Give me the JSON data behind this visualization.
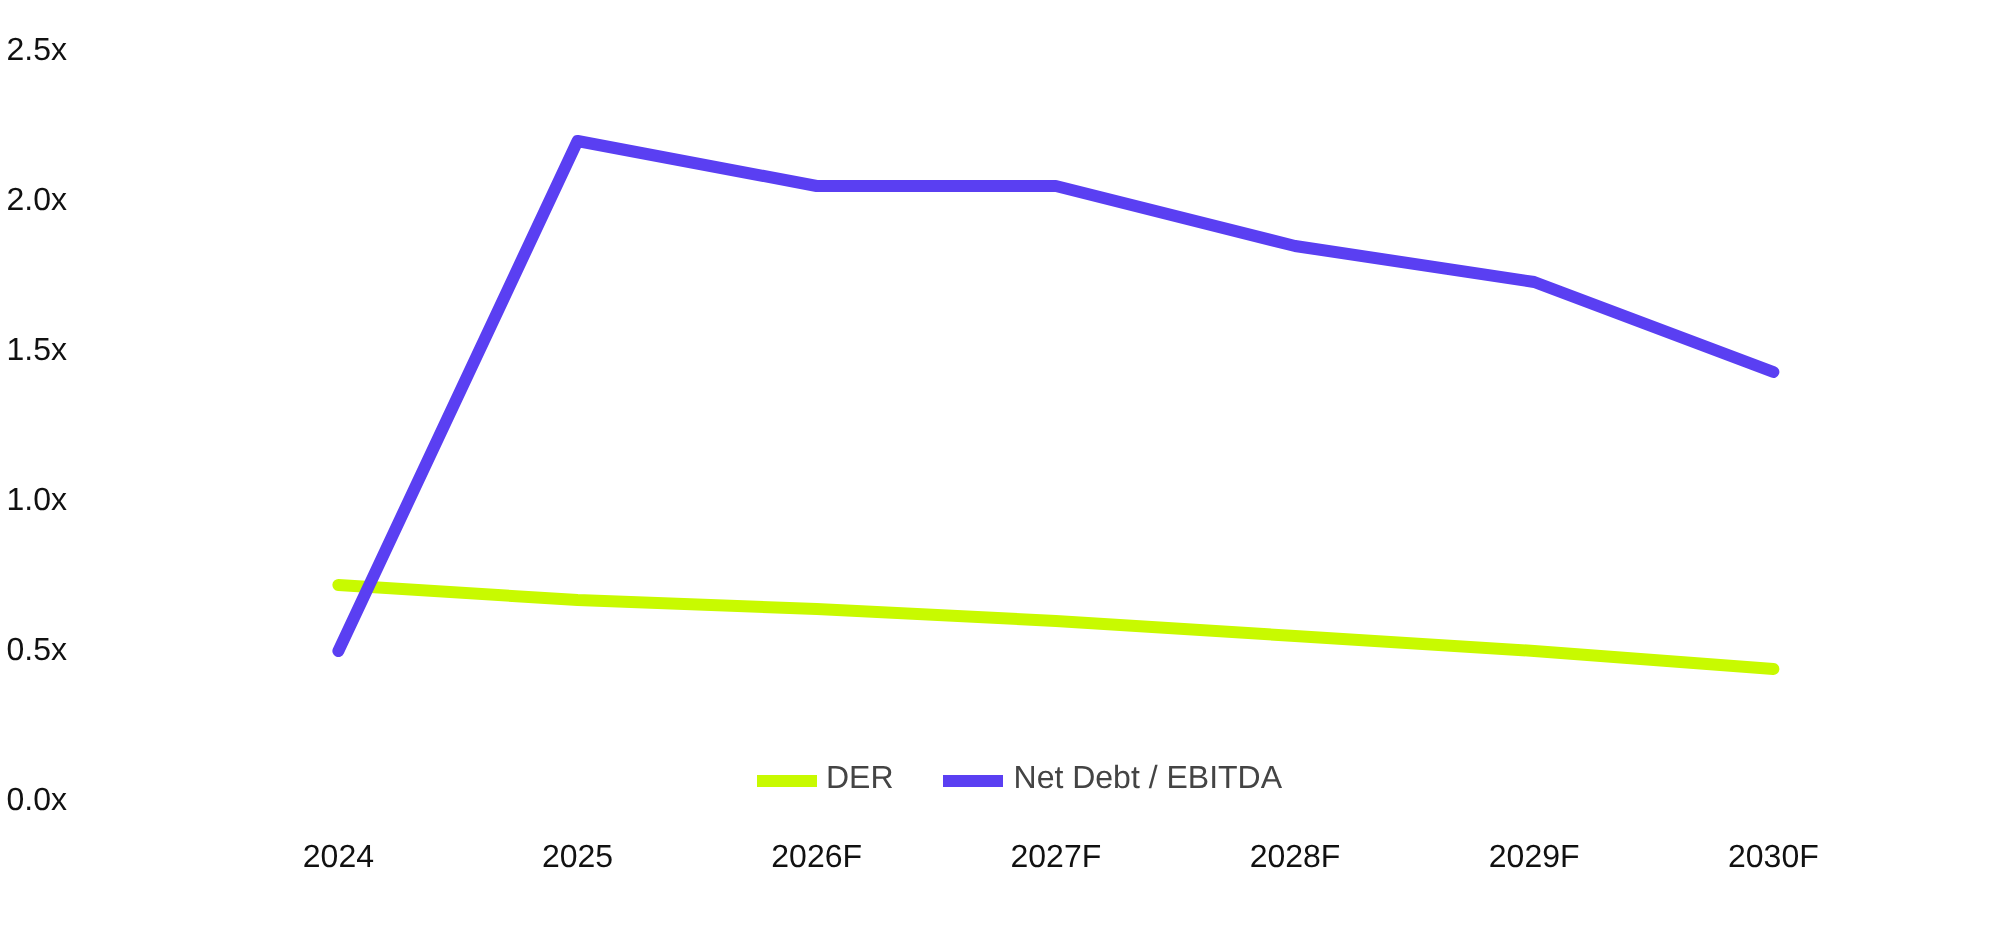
{
  "chart_data": {
    "type": "line",
    "categories": [
      "2024",
      "2025",
      "2026F",
      "2027F",
      "2028F",
      "2029F",
      "2030F"
    ],
    "series": [
      {
        "name": "DER",
        "color": "#c8fa00",
        "values": [
          0.72,
          0.67,
          0.64,
          0.6,
          0.55,
          0.5,
          0.44
        ]
      },
      {
        "name": "Net Debt / EBITDA",
        "color": "#5a3ff2",
        "values": [
          0.5,
          2.2,
          2.05,
          2.05,
          1.85,
          1.73,
          1.43
        ]
      }
    ],
    "ylim": [
      0,
      2.5
    ],
    "yticks": [
      {
        "value": 0,
        "label": "0.0x"
      },
      {
        "value": 0.5,
        "label": "0.5x"
      },
      {
        "value": 1,
        "label": "1.0x"
      },
      {
        "value": 1.5,
        "label": "1.5x"
      },
      {
        "value": 2,
        "label": "2.0x"
      },
      {
        "value": 2.5,
        "label": "2.5x"
      }
    ],
    "grid": false,
    "legend": "bottom",
    "marker": "none",
    "line_style": "solid"
  }
}
